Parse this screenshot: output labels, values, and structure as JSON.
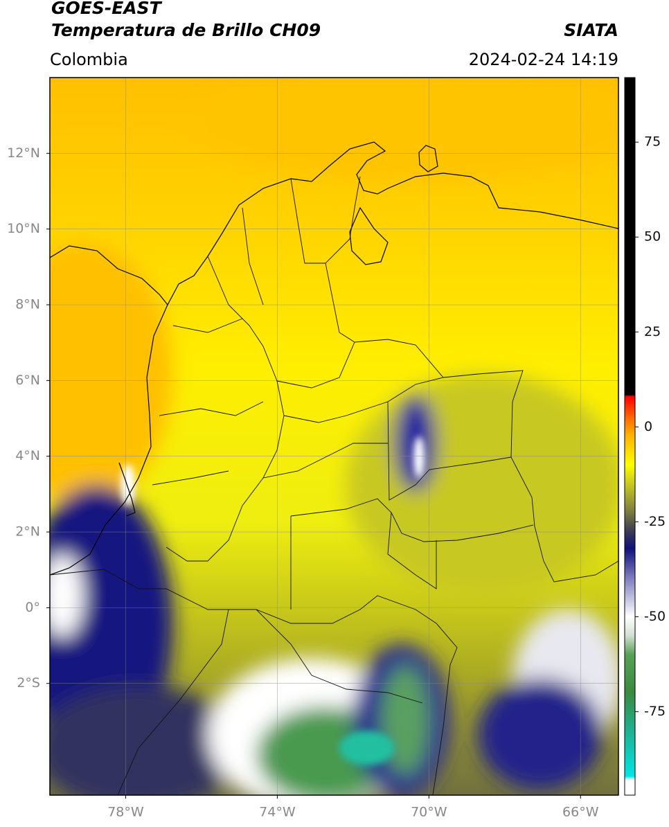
{
  "chart_data": {
    "type": "map",
    "title": "GOES-EAST",
    "subtitle": "Temperatura de Brillo CH09",
    "source": "SIATA",
    "region": "Colombia",
    "timestamp": "2024-02-24 14:19",
    "xlim": [
      -80,
      -65
    ],
    "ylim": [
      -4.95,
      14
    ],
    "xticks": [
      {
        "value": -78,
        "label": "78°W"
      },
      {
        "value": -74,
        "label": "74°W"
      },
      {
        "value": -70,
        "label": "70°W"
      },
      {
        "value": -66,
        "label": "66°W"
      }
    ],
    "yticks": [
      {
        "value": 12,
        "label": "12°N"
      },
      {
        "value": 10,
        "label": "10°N"
      },
      {
        "value": 8,
        "label": "8°N"
      },
      {
        "value": 6,
        "label": "6°N"
      },
      {
        "value": 4,
        "label": "4°N"
      },
      {
        "value": 2,
        "label": "2°N"
      },
      {
        "value": 0,
        "label": "0°"
      },
      {
        "value": -2,
        "label": "2°S"
      }
    ],
    "grid": true,
    "colorbar": {
      "lim": [
        -97,
        92
      ],
      "ticks": [
        75,
        50,
        25,
        0,
        -25,
        -50,
        -75
      ],
      "colormap": [
        {
          "value": -97,
          "color": "#ffffff"
        },
        {
          "value": -93,
          "color": "#ffffff"
        },
        {
          "value": -92,
          "color": "#00e5e5"
        },
        {
          "value": -80,
          "color": "#20b090"
        },
        {
          "value": -70,
          "color": "#3a8a40"
        },
        {
          "value": -60,
          "color": "#58a058"
        },
        {
          "value": -55,
          "color": "#d0e0d0"
        },
        {
          "value": -50,
          "color": "#ffffff"
        },
        {
          "value": -40,
          "color": "#8080c0"
        },
        {
          "value": -32,
          "color": "#10107a"
        },
        {
          "value": -27,
          "color": "#404050"
        },
        {
          "value": -22,
          "color": "#808040"
        },
        {
          "value": -15,
          "color": "#c8c820"
        },
        {
          "value": -10,
          "color": "#ffff00"
        },
        {
          "value": -2,
          "color": "#ffb000"
        },
        {
          "value": 2,
          "color": "#ff7000"
        },
        {
          "value": 8,
          "color": "#ff0000"
        },
        {
          "value": 8.5,
          "color": "#000000"
        },
        {
          "value": 92,
          "color": "#000000"
        }
      ]
    }
  }
}
